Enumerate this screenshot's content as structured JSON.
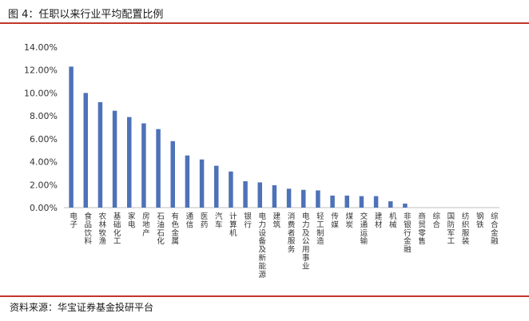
{
  "header": {
    "title": "图 4：任职以来行业平均配置比例"
  },
  "footer": {
    "source": "资料来源：华宝证券基金投研平台"
  },
  "colors": {
    "rule": "#c0392b",
    "bar": "#4e72b8",
    "axis": "#bfbfbf",
    "text": "#333333"
  },
  "chart_data": {
    "type": "bar",
    "title": "",
    "xlabel": "",
    "ylabel": "",
    "ylim": [
      0,
      14
    ],
    "yticks": [
      "0.00%",
      "2.00%",
      "4.00%",
      "6.00%",
      "8.00%",
      "10.00%",
      "12.00%",
      "14.00%"
    ],
    "grid": false,
    "categories": [
      "电子",
      "食品饮料",
      "农林牧渔",
      "基础化工",
      "家电",
      "房地产",
      "石油石化",
      "有色金属",
      "通信",
      "医药",
      "汽车",
      "计算机",
      "银行",
      "电力设备及新能源",
      "建筑",
      "消费者服务",
      "电力及公用事业",
      "轻工制造",
      "传媒",
      "煤炭",
      "交通运输",
      "建材",
      "机械",
      "非银行金融",
      "商贸零售",
      "综合",
      "国防军工",
      "纺织服装",
      "钢铁",
      "综合金融"
    ],
    "values": [
      12.3,
      10.0,
      9.2,
      8.45,
      7.9,
      7.35,
      6.85,
      5.8,
      4.55,
      4.2,
      3.65,
      3.15,
      2.3,
      2.2,
      1.95,
      1.65,
      1.55,
      1.5,
      1.05,
      1.05,
      1.0,
      1.0,
      0.55,
      0.35,
      0,
      0,
      0,
      0,
      0,
      0
    ]
  }
}
